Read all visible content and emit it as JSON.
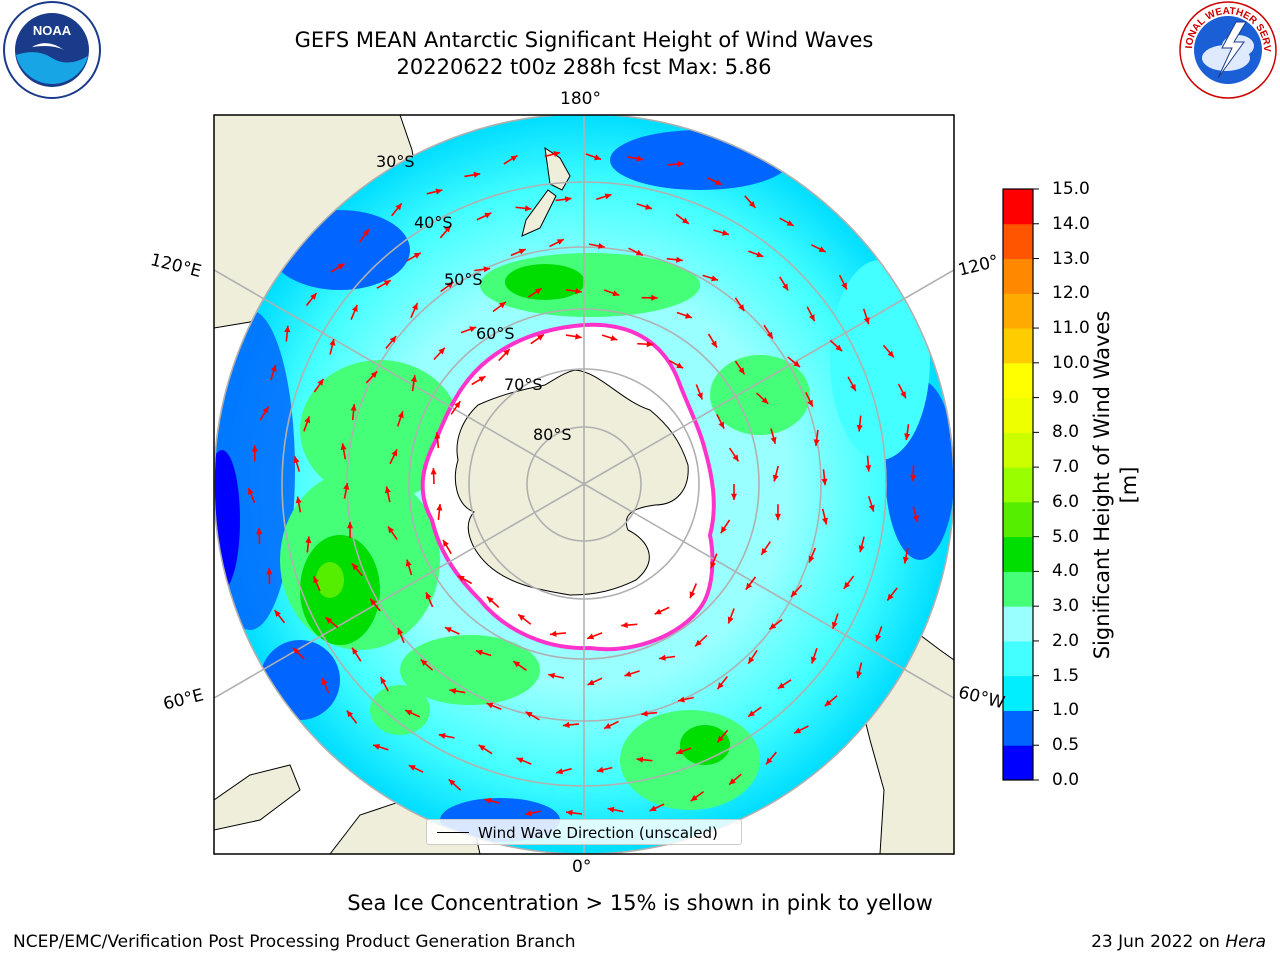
{
  "title_line1": "GEFS MEAN Antarctic Significant Height of Wind Waves",
  "title_line2": "20220622 t00z 288h fcst   Max: 5.86",
  "logos": {
    "left": "noaa-logo",
    "right": "nws-logo"
  },
  "map": {
    "projection": "south-polar-stereographic",
    "lon_labels": {
      "top": "180°",
      "bottom": "0°",
      "left_upper": "120°E",
      "left_lower": "60°E",
      "right_upper": "120°",
      "right_lower": "60°W"
    },
    "lat_labels": [
      "30°S",
      "40°S",
      "50°S",
      "60°S",
      "70°S",
      "80°S"
    ],
    "colors": {
      "land": "#efeedb",
      "ice": "#ffffff",
      "ice_edge": "#ff33cc",
      "arrow": "#ff0000",
      "grid": "#b0b0b0"
    }
  },
  "colorbar": {
    "title": "Significant Height of Wind Waves [m]",
    "ticks": [
      "15.0",
      "14.0",
      "13.0",
      "12.0",
      "11.0",
      "10.0",
      "9.0",
      "8.0",
      "7.0",
      "6.0",
      "5.0",
      "4.0",
      "3.0",
      "2.0",
      "1.5",
      "1.0",
      "0.5",
      "0.0"
    ],
    "colors": [
      "#0000ff",
      "#0066ff",
      "#00eeff",
      "#44ffff",
      "#99ffff",
      "#44ff77",
      "#00dd00",
      "#55ee00",
      "#99ff00",
      "#ccff00",
      "#eeff00",
      "#ffff00",
      "#ffcc00",
      "#ffaa00",
      "#ff8800",
      "#ff5500",
      "#ff0000"
    ]
  },
  "legend": {
    "label": "Wind Wave Direction (unscaled)"
  },
  "note": "Sea Ice Concentration > 15% is shown in pink to yellow",
  "footer": {
    "left": "NCEP/EMC/Verification Post Processing Product Generation Branch",
    "date": "23 Jun 2022 on",
    "system": "Hera"
  }
}
